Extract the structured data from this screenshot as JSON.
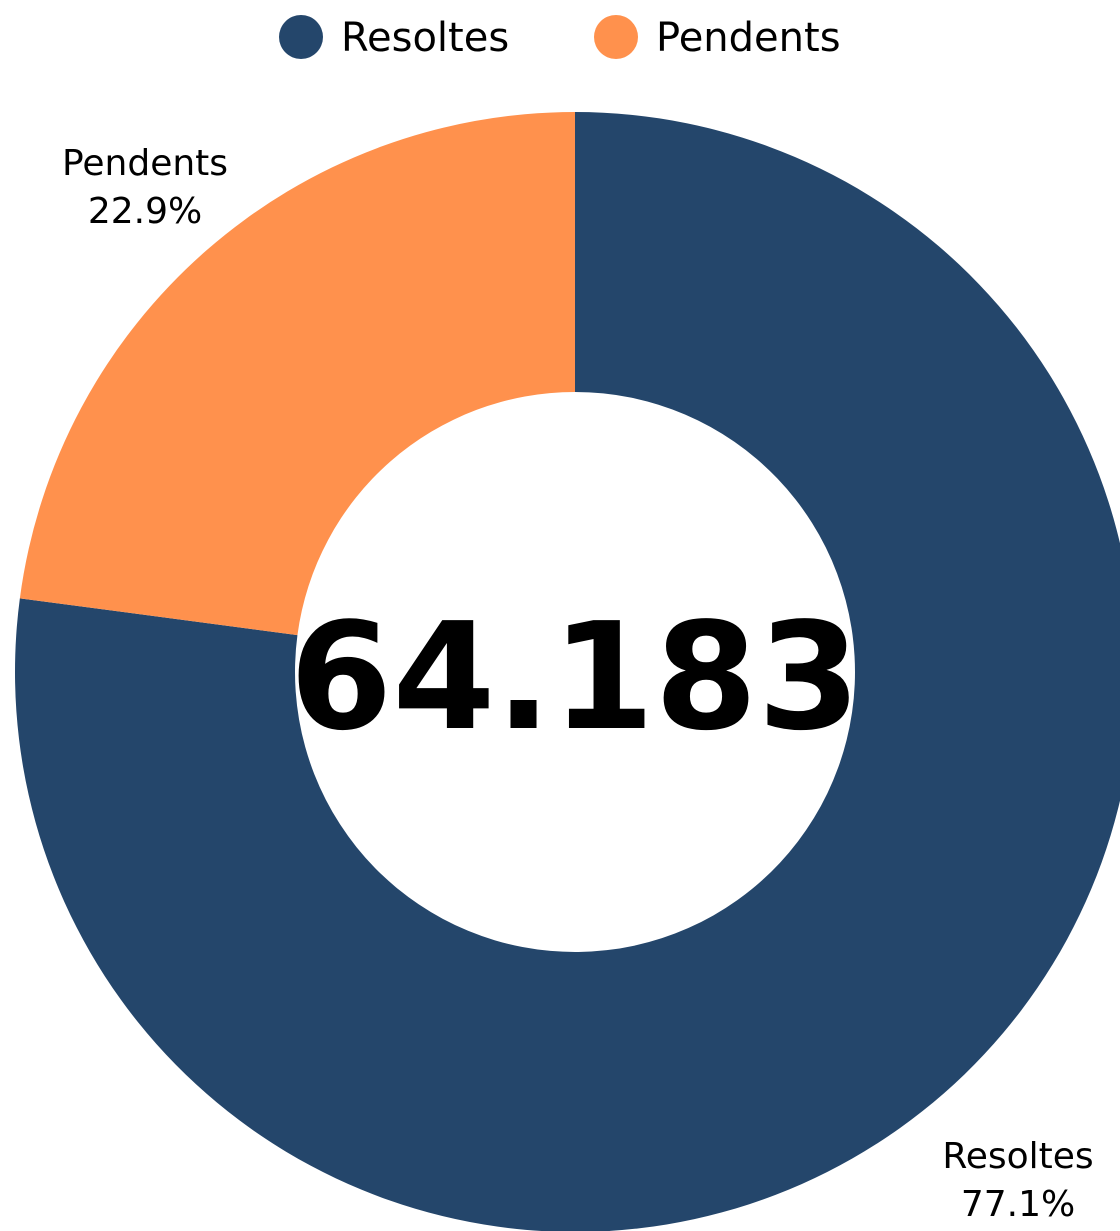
{
  "chart_data": {
    "type": "pie",
    "variant": "donut",
    "center_label": "64.183",
    "legend_position": "top",
    "series": [
      {
        "name": "Resoltes",
        "percent": 77.1,
        "percent_label": "77.1%",
        "color": "#24466B"
      },
      {
        "name": "Pendents",
        "percent": 22.9,
        "percent_label": "22.9%",
        "color": "#FF914D"
      }
    ]
  }
}
